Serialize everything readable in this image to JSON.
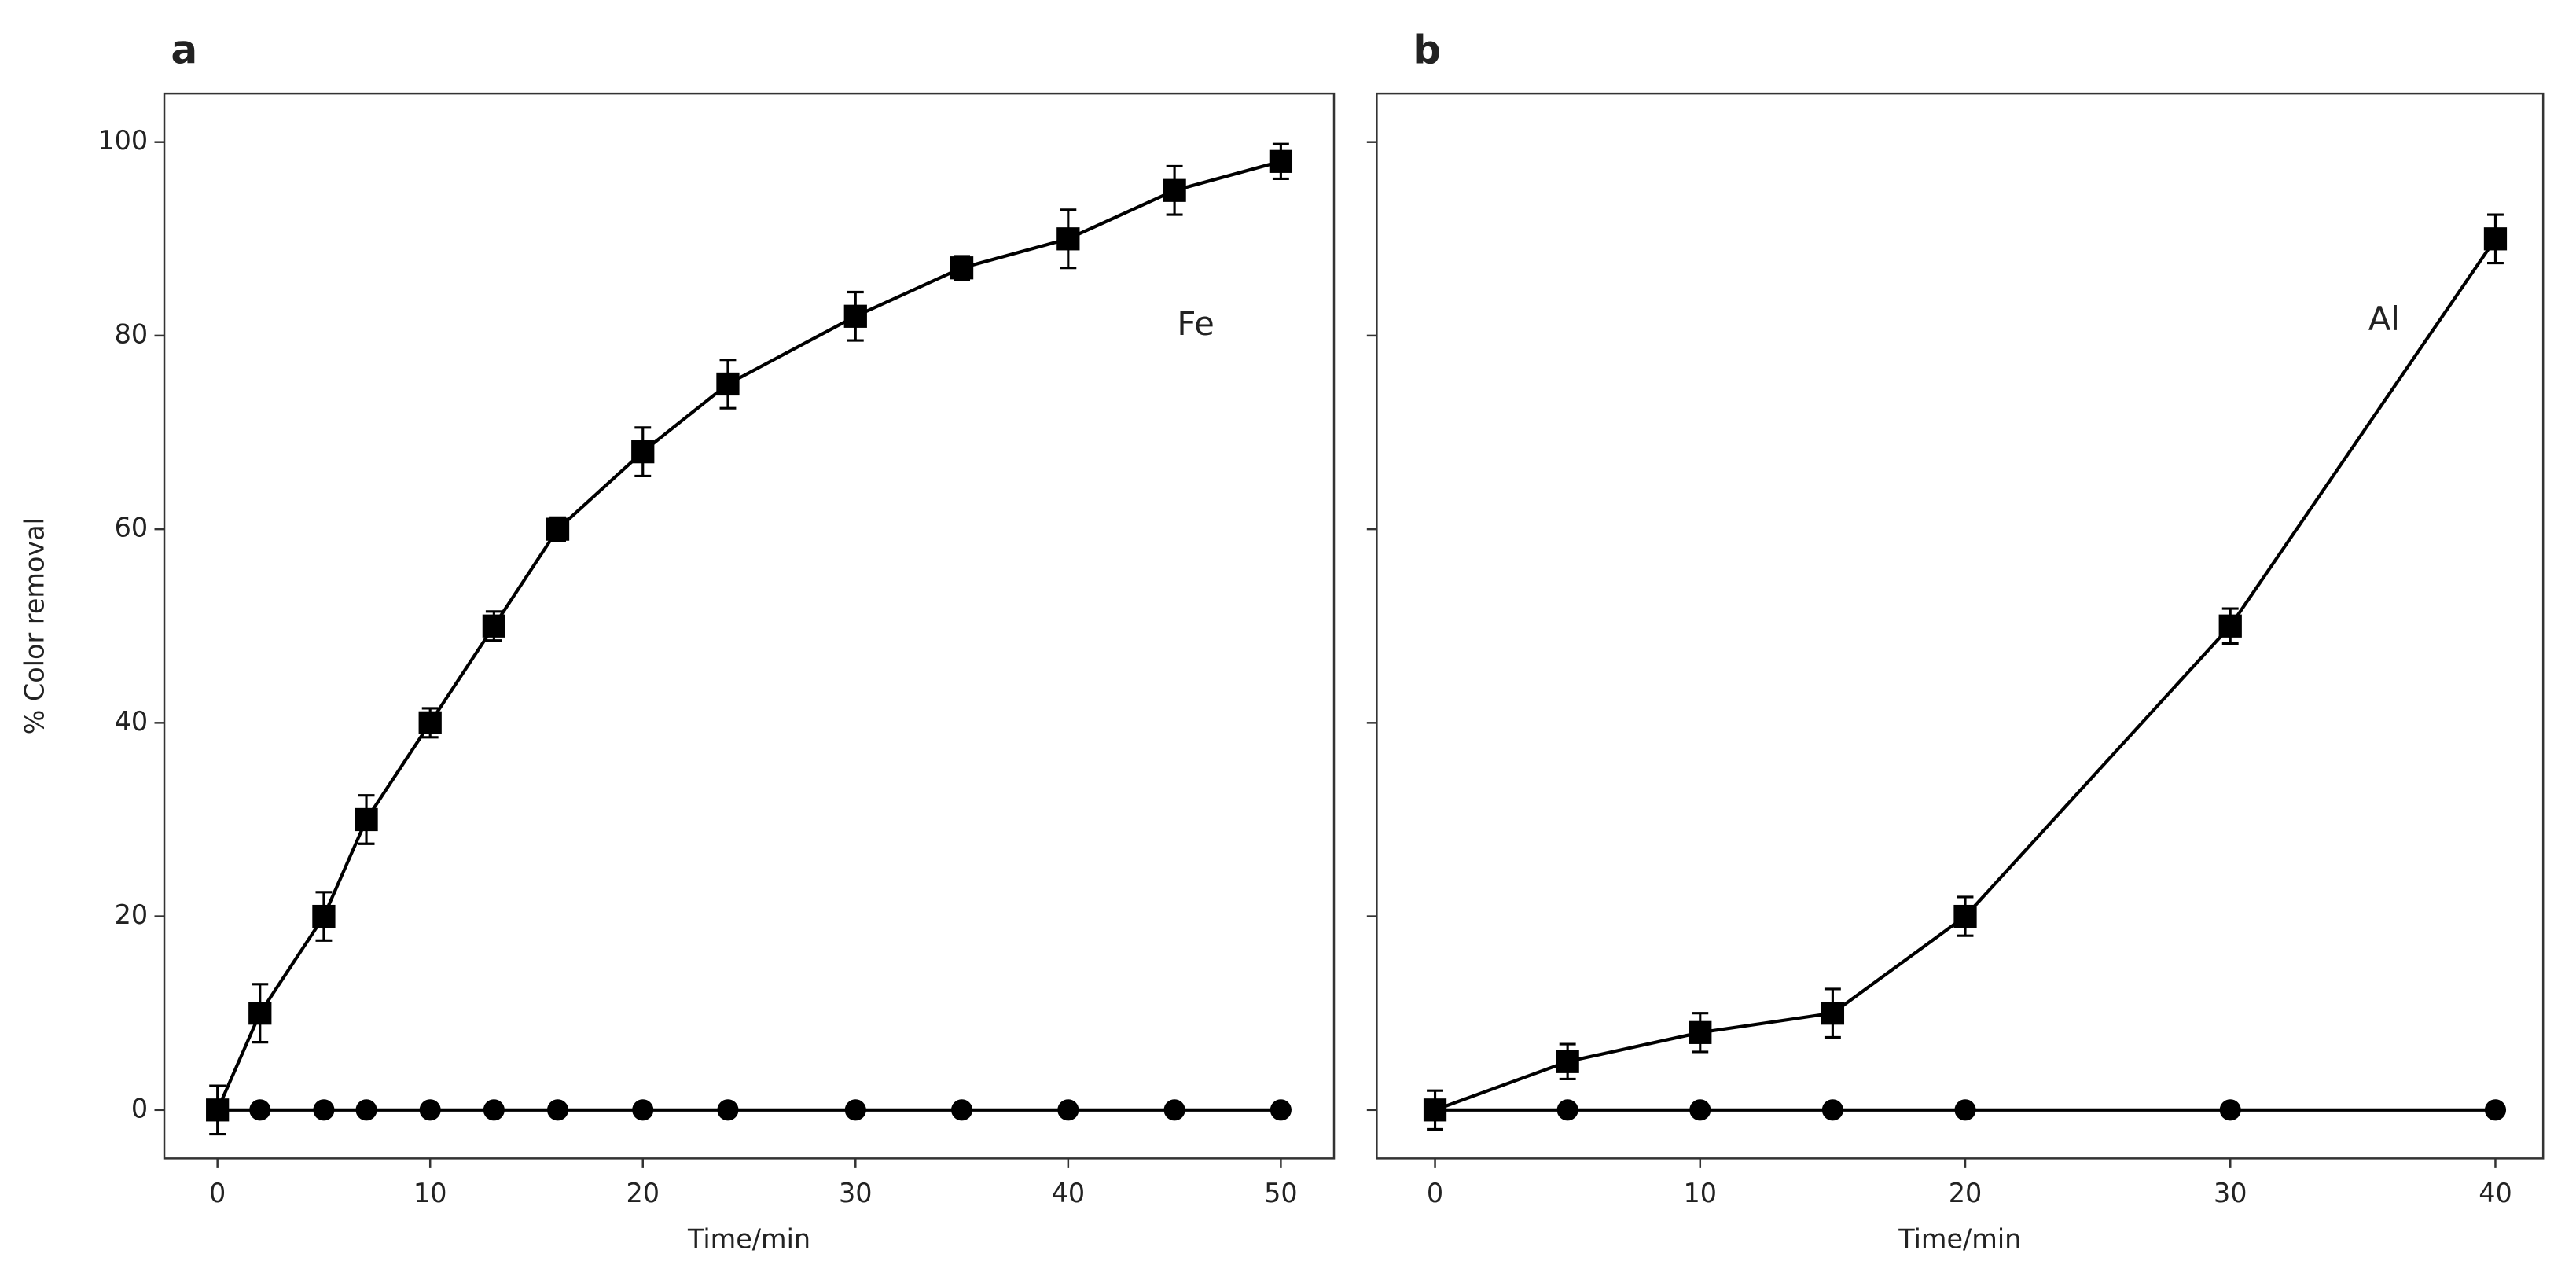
{
  "chart_data": [
    {
      "type": "line",
      "title": "a",
      "xlabel": "Time/min",
      "ylabel": "% Color removal",
      "x": [
        0,
        2,
        5,
        7,
        10,
        13,
        16,
        20,
        24,
        30,
        35,
        40,
        45,
        50
      ],
      "series": [
        {
          "color": "#000000",
          "marker": "square",
          "values": [
            0,
            10,
            20,
            30,
            40,
            50,
            60,
            68,
            75,
            82,
            87,
            90,
            95,
            98
          ],
          "errors": [
            2.5,
            3,
            2.5,
            2.5,
            1.5,
            1.5,
            1.2,
            2.5,
            2.5,
            2.5,
            1.2,
            3,
            2.5,
            1.8
          ]
        },
        {
          "color": "#000000",
          "marker": "circle",
          "values": [
            0,
            0,
            0,
            0,
            0,
            0,
            0,
            0,
            0,
            0,
            0,
            0,
            0,
            0
          ]
        }
      ],
      "annotations": [
        "Fe"
      ],
      "xlim": [
        -2.5,
        52.5
      ],
      "ylim": [
        -5,
        105
      ],
      "xticks": [
        0,
        10,
        20,
        30,
        40,
        50
      ],
      "yticks": [
        0,
        20,
        40,
        60,
        80,
        100
      ],
      "show_ytick_labels": true
    },
    {
      "type": "line",
      "title": "b",
      "xlabel": "Time/min",
      "x": [
        0,
        5,
        10,
        15,
        20,
        30,
        40
      ],
      "series": [
        {
          "color": "#000000",
          "marker": "square",
          "values": [
            0,
            5,
            8,
            10,
            20,
            50,
            90
          ],
          "errors": [
            2,
            1.8,
            2,
            2.5,
            2,
            1.8,
            2.5
          ]
        },
        {
          "color": "#000000",
          "marker": "circle",
          "values": [
            0,
            0,
            0,
            0,
            0,
            0,
            0
          ]
        }
      ],
      "annotations": [
        "Al"
      ],
      "xlim": [
        -2.2,
        41.8
      ],
      "ylim": [
        -5,
        105
      ],
      "xticks": [
        0,
        10,
        20,
        30,
        40
      ],
      "yticks": [
        0,
        20,
        40,
        60,
        80,
        100
      ],
      "show_ytick_labels": false
    }
  ]
}
